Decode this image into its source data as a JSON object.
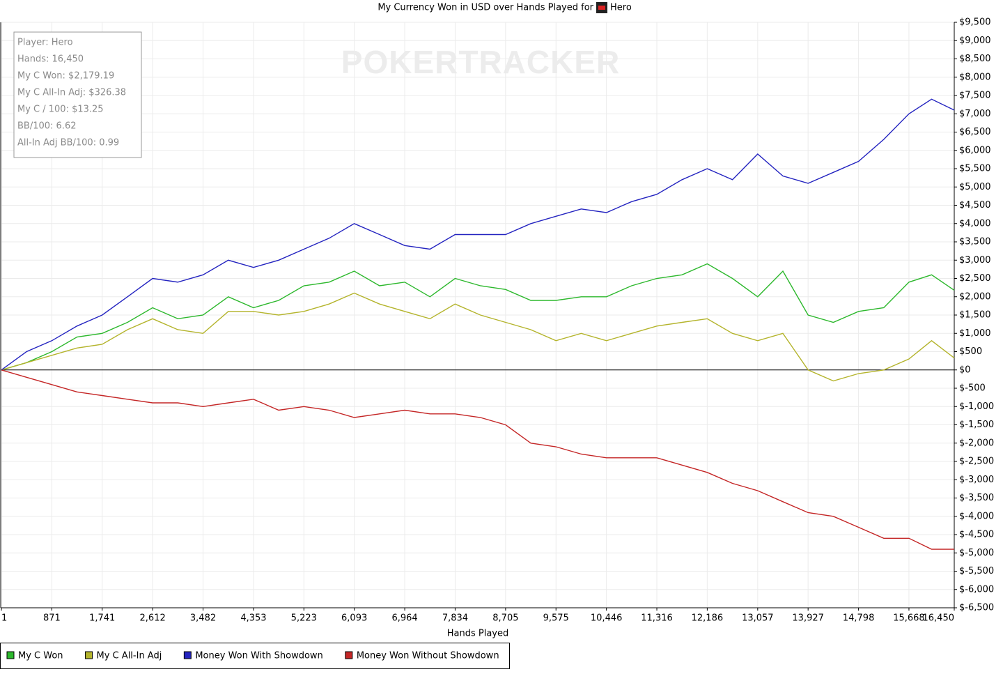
{
  "chart_data": {
    "type": "line",
    "title": "My Currency Won in USD over Hands Played for",
    "player": "Hero",
    "watermark": "POKERTRACKER",
    "x_label": "Hands Played",
    "annotations": [
      "Player: Hero",
      "Hands: 16,450",
      "My C Won: $2,179.19",
      "My C All-In Adj: $326.38",
      "My C / 100: $13.25",
      "BB/100: 6.62",
      "All-In Adj BB/100: 0.99"
    ],
    "x": [
      1,
      435,
      871,
      1306,
      1741,
      2177,
      2612,
      3047,
      3482,
      3918,
      4353,
      4788,
      5223,
      5658,
      6093,
      6529,
      6964,
      7399,
      7834,
      8270,
      8705,
      9140,
      9575,
      10011,
      10446,
      10881,
      11316,
      11751,
      12186,
      12622,
      13057,
      13492,
      13927,
      14363,
      14798,
      15233,
      15668,
      16059,
      16450
    ],
    "series": [
      {
        "name": "My C Won",
        "color": "#2db82d",
        "values": [
          0,
          200,
          500,
          900,
          1000,
          1300,
          1700,
          1400,
          1500,
          2000,
          1700,
          1900,
          2300,
          2400,
          2700,
          2300,
          2400,
          2000,
          2500,
          2300,
          2200,
          1900,
          1900,
          2000,
          2000,
          2300,
          2500,
          2600,
          2900,
          2500,
          2000,
          2700,
          1500,
          1300,
          1600,
          1700,
          2400,
          2600,
          2179
        ]
      },
      {
        "name": "My C All-In Adj",
        "color": "#b4b42c",
        "values": [
          0,
          200,
          400,
          600,
          700,
          1100,
          1400,
          1100,
          1000,
          1600,
          1600,
          1500,
          1600,
          1800,
          2100,
          1800,
          1600,
          1400,
          1800,
          1500,
          1300,
          1100,
          800,
          1000,
          800,
          1000,
          1200,
          1300,
          1400,
          1000,
          800,
          1000,
          0,
          -300,
          -100,
          0,
          300,
          800,
          326
        ]
      },
      {
        "name": "Money Won With Showdown",
        "color": "#2424c0",
        "values": [
          0,
          500,
          800,
          1200,
          1500,
          2000,
          2500,
          2400,
          2600,
          3000,
          2800,
          3000,
          3300,
          3600,
          4000,
          3700,
          3400,
          3300,
          3700,
          3700,
          3700,
          4000,
          4200,
          4400,
          4300,
          4600,
          4800,
          5200,
          5500,
          5200,
          5900,
          5300,
          5100,
          5400,
          5700,
          6300,
          7000,
          7400,
          7100
        ]
      },
      {
        "name": "Money Won Without Showdown",
        "color": "#c42626",
        "values": [
          0,
          -200,
          -400,
          -600,
          -700,
          -800,
          -900,
          -900,
          -1000,
          -900,
          -800,
          -1100,
          -1000,
          -1100,
          -1300,
          -1200,
          -1100,
          -1200,
          -1200,
          -1300,
          -1500,
          -2000,
          -2100,
          -2300,
          -2400,
          -2400,
          -2400,
          -2600,
          -2800,
          -3100,
          -3300,
          -3600,
          -3900,
          -4000,
          -4300,
          -4600,
          -4600,
          -4900,
          -4900
        ]
      }
    ],
    "xlim": [
      1,
      16450
    ],
    "xticks": [
      1,
      871,
      {
        "value": 1741,
        "label": "1,741"
      },
      {
        "value": 2612,
        "label": "2,612"
      },
      {
        "value": 3482,
        "label": "3,482"
      },
      {
        "value": 4353,
        "label": "4,353"
      },
      {
        "value": 5223,
        "label": "5,223"
      },
      {
        "value": 6093,
        "label": "6,093"
      },
      {
        "value": 6964,
        "label": "6,964"
      },
      {
        "value": 7834,
        "label": "7,834"
      },
      {
        "value": 8705,
        "label": "8,705"
      },
      {
        "value": 9575,
        "label": "9,575"
      },
      {
        "value": 10446,
        "label": "10,446"
      },
      {
        "value": 11316,
        "label": "11,316"
      },
      {
        "value": 12186,
        "label": "12,186"
      },
      {
        "value": 13057,
        "label": "13,057"
      },
      {
        "value": 13927,
        "label": "13,927"
      },
      {
        "value": 14798,
        "label": "14,798"
      },
      {
        "value": 15668,
        "label": "15,668"
      },
      {
        "value": 16450,
        "label": "16,450"
      }
    ],
    "ylim": [
      -6500,
      9500
    ],
    "yticks": [
      {
        "value": 9500,
        "label": "$9,500"
      },
      {
        "value": 9000,
        "label": "$9,000"
      },
      {
        "value": 8500,
        "label": "$8,500"
      },
      {
        "value": 8000,
        "label": "$8,000"
      },
      {
        "value": 7500,
        "label": "$7,500"
      },
      {
        "value": 7000,
        "label": "$7,000"
      },
      {
        "value": 6500,
        "label": "$6,500"
      },
      {
        "value": 6000,
        "label": "$6,000"
      },
      {
        "value": 5500,
        "label": "$5,500"
      },
      {
        "value": 5000,
        "label": "$5,000"
      },
      {
        "value": 4500,
        "label": "$4,500"
      },
      {
        "value": 4000,
        "label": "$4,000"
      },
      {
        "value": 3500,
        "label": "$3,500"
      },
      {
        "value": 3000,
        "label": "$3,000"
      },
      {
        "value": 2500,
        "label": "$2,500"
      },
      {
        "value": 2000,
        "label": "$2,000"
      },
      {
        "value": 1500,
        "label": "$1,500"
      },
      {
        "value": 1000,
        "label": "$1,000"
      },
      {
        "value": 500,
        "label": "$500"
      },
      {
        "value": 0,
        "label": "$0"
      },
      {
        "value": -500,
        "label": "$-500"
      },
      {
        "value": -1000,
        "label": "$-1,000"
      },
      {
        "value": -1500,
        "label": "$-1,500"
      },
      {
        "value": -2000,
        "label": "$-2,000"
      },
      {
        "value": -2500,
        "label": "$-2,500"
      },
      {
        "value": -3000,
        "label": "$-3,000"
      },
      {
        "value": -3500,
        "label": "$-3,500"
      },
      {
        "value": -4000,
        "label": "$-4,000"
      },
      {
        "value": -4500,
        "label": "$-4,500"
      },
      {
        "value": -5000,
        "label": "$-5,000"
      },
      {
        "value": -5500,
        "label": "$-5,500"
      },
      {
        "value": -6000,
        "label": "$-6,000"
      },
      {
        "value": -6500,
        "label": "$-6,500"
      }
    ],
    "grid": true,
    "legend": "bottom-left"
  }
}
